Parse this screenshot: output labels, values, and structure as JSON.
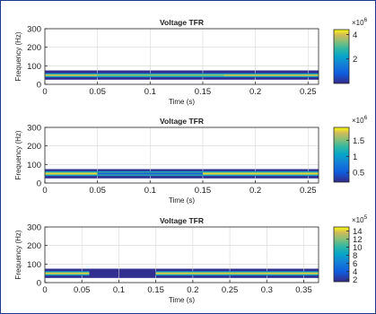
{
  "chart_data": [
    {
      "type": "heatmap",
      "title": "Voltage TFR",
      "xlabel": "Time (s)",
      "ylabel": "Frequency (Hz)",
      "xlim": [
        0,
        0.26
      ],
      "ylim": [
        0,
        300
      ],
      "xticks": [
        "0",
        "0.05",
        "0.1",
        "0.15",
        "0.2",
        "0.25"
      ],
      "yticks": [
        "0",
        "100",
        "200",
        "300"
      ],
      "colorbar": {
        "ticks": [
          "2",
          "4"
        ],
        "exponent": "×10",
        "exponent_power": "6",
        "range": [
          0,
          4.4
        ]
      },
      "bands": [
        {
          "f_low": 38,
          "f_high": 60,
          "t_start": 0,
          "t_end": 0.26,
          "intensity": 4.0
        },
        {
          "f_low": 44,
          "f_high": 54,
          "t_start": 0.05,
          "t_end": 0.17,
          "intensity": 4.2
        }
      ]
    },
    {
      "type": "heatmap",
      "title": "Voltage TFR",
      "xlabel": "Time (s)",
      "ylabel": "Frequency (Hz)",
      "xlim": [
        0,
        0.26
      ],
      "ylim": [
        0,
        300
      ],
      "xticks": [
        "0",
        "0.05",
        "0.1",
        "0.15",
        "0.2",
        "0.25"
      ],
      "yticks": [
        "0",
        "100",
        "200",
        "300"
      ],
      "colorbar": {
        "ticks": [
          "0.5",
          "1",
          "1.5"
        ],
        "exponent": "×10",
        "exponent_power": "6",
        "range": [
          0.2,
          1.9
        ]
      },
      "bands": [
        {
          "f_low": 38,
          "f_high": 64,
          "t_start": 0,
          "t_end": 0.26,
          "intensity": 1.8
        },
        {
          "f_low": 46,
          "f_high": 56,
          "t_start": 0.05,
          "t_end": 0.15,
          "intensity": 0.6
        }
      ]
    },
    {
      "type": "heatmap",
      "title": "Voltage TFR",
      "xlabel": "Time (s)",
      "ylabel": "Frequency (Hz)",
      "xlim": [
        0,
        0.37
      ],
      "ylim": [
        0,
        300
      ],
      "xticks": [
        "0",
        "0.05",
        "0.1",
        "0.15",
        "0.2",
        "0.25",
        "0.3",
        "0.35"
      ],
      "yticks": [
        "0",
        "100",
        "200",
        "300"
      ],
      "colorbar": {
        "ticks": [
          "2",
          "4",
          "6",
          "8",
          "10",
          "12",
          "14"
        ],
        "exponent": "×10",
        "exponent_power": "5",
        "range": [
          1.5,
          15
        ]
      },
      "bands": [
        {
          "f_low": 38,
          "f_high": 62,
          "t_start": 0,
          "t_end": 0.06,
          "intensity": 14
        },
        {
          "f_low": 38,
          "f_high": 62,
          "t_start": 0.15,
          "t_end": 0.37,
          "intensity": 14
        }
      ]
    }
  ]
}
